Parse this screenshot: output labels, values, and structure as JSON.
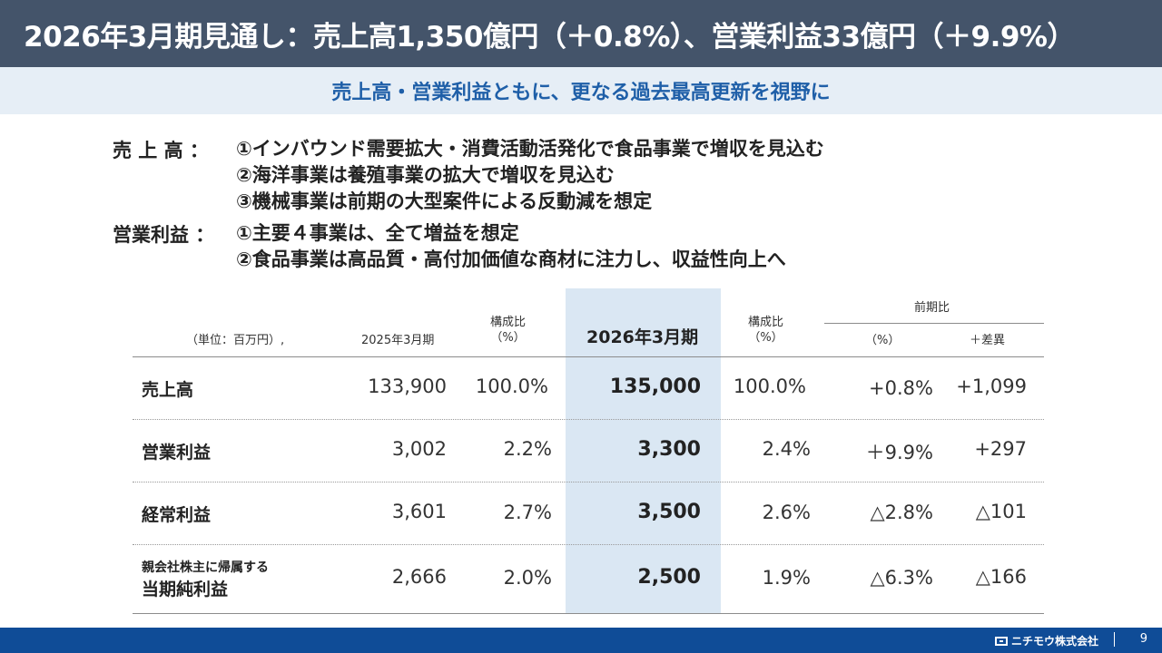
{
  "title": "2026年3月期見通し：売上高1,350億円（＋0.8%）、営業利益33億円（＋9.9%）",
  "subtitle": "売上高・営業利益ともに、更なる過去最高更新を視野に",
  "bullets": [
    {
      "label": "売 上 高 ：",
      "lines": [
        "①インバウンド需要拡大・消費活動活発化で食品事業で増収を見込む",
        "②海洋事業は養殖事業の拡大で増収を見込む",
        "③機械事業は前期の大型案件による反動減を想定"
      ]
    },
    {
      "label": "営業利益 ：",
      "lines": [
        "①主要４事業は、全て増益を想定",
        "②食品事業は高品質・高付加価値な商材に注力し、収益性向上へ"
      ]
    }
  ],
  "table": {
    "unit_label": "（単位：百万円）,",
    "col_fy2025": "2025年3月期",
    "col_ratio1": "構成比\n（%）",
    "col_fy2026": "2026年3月期",
    "col_ratio2": "構成比\n（%）",
    "col_yoy_group": "前期比",
    "col_yoy_pct": "（%）",
    "col_yoy_diff": "＋差異",
    "rows": [
      {
        "label": "売上高",
        "fy2025": "133,900",
        "ratio1": "100.0%",
        "fy2026": "135,000",
        "ratio2": "100.0%",
        "yoy_pct": "+0.8%",
        "yoy_diff": "+1,099"
      },
      {
        "label": "営業利益",
        "fy2025": "3,002",
        "ratio1": "2.2%",
        "fy2026": "3,300",
        "ratio2": "2.4%",
        "yoy_pct": "＋9.9%",
        "yoy_diff": "+297"
      },
      {
        "label": "経常利益",
        "fy2025": "3,601",
        "ratio1": "2.7%",
        "fy2026": "3,500",
        "ratio2": "2.6%",
        "yoy_pct": "△2.8%",
        "yoy_diff": "△101"
      },
      {
        "label_small": "親会社株主に帰属する",
        "label": "当期純利益",
        "fy2025": "2,666",
        "ratio1": "2.0%",
        "fy2026": "2,500",
        "ratio2": "1.9%",
        "yoy_pct": "△6.3%",
        "yoy_diff": "△166"
      }
    ]
  },
  "footer": {
    "company": "ニチモウ株式会社",
    "page": "9",
    "logo_icon": "company-logo-mark"
  },
  "colors": {
    "title_bg": "#44546a",
    "subtitle_bg": "#e6eef6",
    "subtitle_text": "#1f5fa8",
    "highlight_col": "#dae7f3",
    "footer_bg": "#0f4c97"
  }
}
